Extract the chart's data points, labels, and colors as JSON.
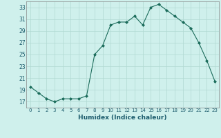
{
  "x": [
    0,
    1,
    2,
    3,
    4,
    5,
    6,
    7,
    8,
    9,
    10,
    11,
    12,
    13,
    14,
    15,
    16,
    17,
    18,
    19,
    20,
    21,
    22,
    23
  ],
  "y": [
    19.5,
    18.5,
    17.5,
    17.0,
    17.5,
    17.5,
    17.5,
    18.0,
    25.0,
    26.5,
    30.0,
    30.5,
    30.5,
    31.5,
    30.0,
    33.0,
    33.5,
    32.5,
    31.5,
    30.5,
    29.5,
    27.0,
    24.0,
    20.5
  ],
  "xlabel": "Humidex (Indice chaleur)",
  "xlim": [
    -0.5,
    23.5
  ],
  "ylim": [
    16,
    34
  ],
  "yticks": [
    17,
    19,
    21,
    23,
    25,
    27,
    29,
    31,
    33
  ],
  "xtick_labels": [
    "0",
    "1",
    "2",
    "3",
    "4",
    "5",
    "6",
    "7",
    "8",
    "9",
    "10",
    "11",
    "12",
    "13",
    "14",
    "15",
    "16",
    "17",
    "18",
    "19",
    "20",
    "21",
    "22",
    "23"
  ],
  "line_color": "#1a6b5a",
  "marker": "D",
  "marker_size": 2.0,
  "bg_color": "#cff0ec",
  "grid_color": "#b0d8d2",
  "font_color": "#1a5a6b",
  "line_width": 0.8
}
